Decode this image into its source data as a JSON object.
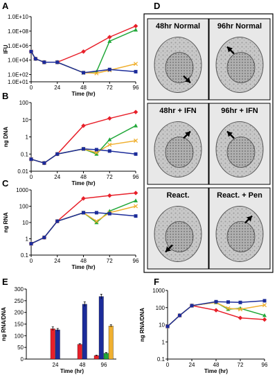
{
  "colors": {
    "normal": "#e8202a",
    "ifn48": "#22a83a",
    "ifn96": "#f0b030",
    "pen": "#1c2c9a",
    "axis": "#000000"
  },
  "chart_data": [
    {
      "panel": "A",
      "type": "line",
      "ylabel": "IFU",
      "xlabel": "Time (hr)",
      "yscale": "log",
      "ylim": [
        10,
        10000000000
      ],
      "yticks": [
        10,
        100,
        10000,
        1000000,
        100000000,
        10000000000
      ],
      "ytick_labels": [
        "1.0E+01",
        "1.0E+02",
        "1.0E+04",
        "1.0E+06",
        "1.0E+08",
        "1.0E+10"
      ],
      "xlim": [
        0,
        96
      ],
      "xticks": [
        0,
        24,
        48,
        72,
        96
      ],
      "series": [
        {
          "key": "normal",
          "marker": "diamond",
          "x": [
            0,
            4,
            12,
            24,
            48,
            72,
            96
          ],
          "y": [
            150000,
            15000,
            5000,
            5000,
            150000,
            15000000,
            500000000
          ]
        },
        {
          "key": "ifn48",
          "marker": "triangle",
          "x": [
            0,
            4,
            12,
            24,
            48,
            60,
            72,
            96
          ],
          "y": [
            150000,
            15000,
            5000,
            5000,
            180,
            250,
            4000000,
            150000000
          ]
        },
        {
          "key": "ifn96",
          "marker": "x",
          "x": [
            0,
            4,
            12,
            24,
            48,
            60,
            72,
            96
          ],
          "y": [
            150000,
            15000,
            5000,
            5000,
            180,
            150,
            400,
            3000
          ]
        },
        {
          "key": "pen",
          "marker": "square",
          "x": [
            0,
            4,
            12,
            24,
            48,
            72,
            96
          ],
          "y": [
            150000,
            15000,
            5000,
            5000,
            180,
            500,
            250
          ]
        }
      ]
    },
    {
      "panel": "B",
      "type": "line",
      "ylabel": "ng DNA",
      "xlabel": "Time (hr)",
      "yscale": "log",
      "ylim": [
        0.01,
        100
      ],
      "yticks": [
        0.01,
        0.1,
        1,
        10,
        100
      ],
      "ytick_labels": [
        "0.01",
        "0.1",
        "1",
        "10",
        "100"
      ],
      "xlim": [
        0,
        96
      ],
      "xticks": [
        0,
        24,
        48,
        72,
        96
      ],
      "series": [
        {
          "key": "normal",
          "marker": "diamond",
          "x": [
            0,
            12,
            24,
            48,
            72,
            96
          ],
          "y": [
            0.05,
            0.03,
            0.1,
            4.5,
            12,
            28
          ]
        },
        {
          "key": "ifn48",
          "marker": "triangle",
          "x": [
            0,
            12,
            24,
            48,
            60,
            72,
            96
          ],
          "y": [
            0.05,
            0.03,
            0.1,
            0.2,
            0.1,
            0.7,
            4.5
          ]
        },
        {
          "key": "ifn96",
          "marker": "x",
          "x": [
            0,
            12,
            24,
            48,
            60,
            72,
            96
          ],
          "y": [
            0.05,
            0.03,
            0.1,
            0.2,
            0.12,
            0.35,
            0.6
          ]
        },
        {
          "key": "pen",
          "marker": "square",
          "x": [
            0,
            12,
            24,
            48,
            60,
            72,
            96
          ],
          "y": [
            0.05,
            0.03,
            0.1,
            0.2,
            0.18,
            0.15,
            0.1
          ]
        }
      ]
    },
    {
      "panel": "C",
      "type": "line",
      "ylabel": "ng RNA",
      "xlabel": "Time (hr)",
      "yscale": "log",
      "ylim": [
        0.1,
        1000
      ],
      "yticks": [
        0.1,
        1,
        10,
        100,
        1000
      ],
      "ytick_labels": [
        "0.1",
        "1",
        "10",
        "100",
        "1000"
      ],
      "xlim": [
        0,
        96
      ],
      "xticks": [
        0,
        24,
        48,
        72,
        96
      ],
      "series": [
        {
          "key": "normal",
          "marker": "diamond",
          "x": [
            0,
            12,
            24,
            48,
            72,
            96
          ],
          "y": [
            0.5,
            1.2,
            12,
            300,
            450,
            650
          ]
        },
        {
          "key": "ifn48",
          "marker": "triangle",
          "x": [
            0,
            12,
            24,
            48,
            60,
            72,
            96
          ],
          "y": [
            0.5,
            1.2,
            12,
            40,
            10,
            50,
            220
          ]
        },
        {
          "key": "ifn96",
          "marker": "x",
          "x": [
            0,
            12,
            24,
            48,
            60,
            72,
            96
          ],
          "y": [
            0.5,
            1.2,
            12,
            40,
            12,
            40,
            100
          ]
        },
        {
          "key": "pen",
          "marker": "square",
          "x": [
            0,
            12,
            24,
            48,
            60,
            72,
            96
          ],
          "y": [
            0.5,
            1.2,
            12,
            40,
            40,
            35,
            25
          ]
        }
      ]
    },
    {
      "panel": "E",
      "type": "bar",
      "ylabel": "ng RNA/DNA",
      "xlabel": "Time (hr)",
      "ylim": [
        0,
        300
      ],
      "yticks": [
        0,
        50,
        100,
        150,
        200,
        250,
        300
      ],
      "categories": [
        "24",
        "48",
        "96"
      ],
      "groups": [
        {
          "bars": [
            {
              "key": "normal",
              "value": 130,
              "err": 8
            },
            {
              "key": "pen",
              "value": 125,
              "err": 6
            }
          ]
        },
        {
          "bars": [
            {
              "key": "normal",
              "value": 63,
              "err": 3
            },
            {
              "key": "pen",
              "value": 235,
              "err": 10
            }
          ]
        },
        {
          "bars": [
            {
              "key": "normal",
              "value": 15,
              "err": 2
            },
            {
              "key": "pen",
              "value": 268,
              "err": 10
            },
            {
              "key": "ifn48",
              "value": 25,
              "err": 3
            },
            {
              "key": "ifn96",
              "value": 142,
              "err": 5
            }
          ]
        }
      ]
    },
    {
      "panel": "F",
      "type": "line",
      "ylabel": "ng RNA/DNA",
      "xlabel": "Time (hr)",
      "yscale": "log",
      "ylim": [
        0.1,
        1000
      ],
      "yticks": [
        0.1,
        1,
        10,
        100,
        1000
      ],
      "ytick_labels": [
        "0.1",
        "1",
        "10",
        "100",
        "1000"
      ],
      "xlim": [
        0,
        96
      ],
      "xticks": [
        0,
        24,
        48,
        72,
        96
      ],
      "series": [
        {
          "key": "normal",
          "marker": "diamond",
          "x": [
            0,
            12,
            24,
            48,
            72,
            96
          ],
          "y": [
            8,
            35,
            130,
            70,
            25,
            20
          ]
        },
        {
          "key": "ifn48",
          "marker": "triangle",
          "x": [
            0,
            12,
            24,
            48,
            60,
            72,
            96
          ],
          "y": [
            8,
            35,
            130,
            200,
            80,
            90,
            35
          ]
        },
        {
          "key": "ifn96",
          "marker": "x",
          "x": [
            0,
            12,
            24,
            48,
            60,
            72,
            96
          ],
          "y": [
            8,
            35,
            130,
            200,
            90,
            80,
            140
          ]
        },
        {
          "key": "pen",
          "marker": "square",
          "x": [
            0,
            12,
            24,
            48,
            60,
            72,
            96
          ],
          "y": [
            8,
            35,
            130,
            220,
            210,
            200,
            250
          ]
        }
      ]
    }
  ],
  "micrographs": {
    "panel": "D",
    "cells": [
      {
        "label": "48hr Normal",
        "arrow": "down-right"
      },
      {
        "label": "96hr Normal",
        "arrow": "up-left"
      },
      {
        "label": "48hr + IFN",
        "arrow": "up-right"
      },
      {
        "label": "96hr + IFN",
        "arrow": "up-left"
      },
      {
        "label": "React.",
        "arrow": "down-left"
      },
      {
        "label": "React. + Pen",
        "arrow": "up-right"
      }
    ]
  }
}
